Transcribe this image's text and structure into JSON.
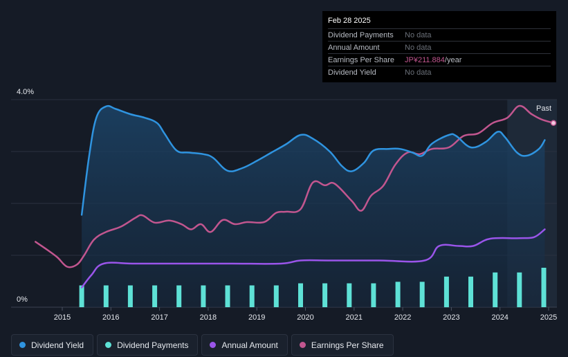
{
  "chart_data": {
    "type": "line",
    "y_axis": {
      "top_label": "4.0%",
      "bottom_label": "0%",
      "ylim": [
        0,
        4.0
      ]
    },
    "x_axis": {
      "ticks": [
        "2015",
        "2016",
        "2017",
        "2018",
        "2019",
        "2020",
        "2021",
        "2022",
        "2023",
        "2024",
        "2025"
      ],
      "xlim": [
        2014.4,
        2025.17
      ]
    },
    "past_label": "Past",
    "forecast_start": 2024.15,
    "series": [
      {
        "name": "Dividend Yield",
        "color": "#2f94e0",
        "unit": "%",
        "points": [
          [
            2015.4,
            1.78
          ],
          [
            2015.55,
            2.9
          ],
          [
            2015.7,
            3.65
          ],
          [
            2015.9,
            3.87
          ],
          [
            2016.1,
            3.82
          ],
          [
            2016.4,
            3.72
          ],
          [
            2016.7,
            3.65
          ],
          [
            2016.95,
            3.55
          ],
          [
            2017.1,
            3.35
          ],
          [
            2017.35,
            3.02
          ],
          [
            2017.6,
            2.98
          ],
          [
            2017.9,
            2.95
          ],
          [
            2018.1,
            2.88
          ],
          [
            2018.4,
            2.63
          ],
          [
            2018.7,
            2.68
          ],
          [
            2019.0,
            2.82
          ],
          [
            2019.3,
            2.98
          ],
          [
            2019.6,
            3.14
          ],
          [
            2019.9,
            3.32
          ],
          [
            2020.15,
            3.25
          ],
          [
            2020.5,
            3.0
          ],
          [
            2020.75,
            2.72
          ],
          [
            2020.95,
            2.62
          ],
          [
            2021.2,
            2.78
          ],
          [
            2021.4,
            3.02
          ],
          [
            2021.7,
            3.05
          ],
          [
            2021.95,
            3.05
          ],
          [
            2022.2,
            2.98
          ],
          [
            2022.4,
            2.92
          ],
          [
            2022.6,
            3.15
          ],
          [
            2022.95,
            3.32
          ],
          [
            2023.1,
            3.3
          ],
          [
            2023.4,
            3.08
          ],
          [
            2023.7,
            3.18
          ],
          [
            2023.95,
            3.38
          ],
          [
            2024.1,
            3.28
          ],
          [
            2024.35,
            2.98
          ],
          [
            2024.55,
            2.92
          ],
          [
            2024.8,
            3.05
          ],
          [
            2024.92,
            3.22
          ]
        ]
      },
      {
        "name": "Dividend Payments",
        "color": "#5ee1d6",
        "type": "bar",
        "x": [
          2015.4,
          2015.9,
          2016.4,
          2016.9,
          2017.4,
          2017.9,
          2018.4,
          2018.9,
          2019.4,
          2019.9,
          2020.4,
          2020.9,
          2021.4,
          2021.9,
          2022.4,
          2022.9,
          2023.4,
          2023.9,
          2024.4,
          2024.9
        ],
        "values": [
          0.42,
          0.42,
          0.42,
          0.42,
          0.42,
          0.42,
          0.42,
          0.42,
          0.42,
          0.46,
          0.46,
          0.46,
          0.46,
          0.49,
          0.49,
          0.59,
          0.59,
          0.67,
          0.67,
          0.76
        ]
      },
      {
        "name": "Annual Amount",
        "color": "#9a55ea",
        "points": [
          [
            2015.4,
            0.38
          ],
          [
            2015.6,
            0.62
          ],
          [
            2015.85,
            0.84
          ],
          [
            2016.5,
            0.84
          ],
          [
            2017.5,
            0.84
          ],
          [
            2018.5,
            0.84
          ],
          [
            2019.5,
            0.84
          ],
          [
            2019.9,
            0.9
          ],
          [
            2020.5,
            0.9
          ],
          [
            2021.5,
            0.9
          ],
          [
            2022.45,
            0.9
          ],
          [
            2022.75,
            1.18
          ],
          [
            2023.15,
            1.18
          ],
          [
            2023.45,
            1.18
          ],
          [
            2023.8,
            1.32
          ],
          [
            2024.4,
            1.33
          ],
          [
            2024.7,
            1.35
          ],
          [
            2024.92,
            1.5
          ]
        ]
      },
      {
        "name": "Earnings Per Share",
        "color": "#c2568f",
        "points": [
          [
            2014.45,
            1.26
          ],
          [
            2014.7,
            1.1
          ],
          [
            2014.9,
            0.96
          ],
          [
            2015.1,
            0.78
          ],
          [
            2015.3,
            0.82
          ],
          [
            2015.45,
            1.0
          ],
          [
            2015.65,
            1.3
          ],
          [
            2015.9,
            1.45
          ],
          [
            2016.2,
            1.55
          ],
          [
            2016.5,
            1.72
          ],
          [
            2016.65,
            1.77
          ],
          [
            2016.9,
            1.63
          ],
          [
            2017.2,
            1.67
          ],
          [
            2017.45,
            1.6
          ],
          [
            2017.65,
            1.5
          ],
          [
            2017.85,
            1.6
          ],
          [
            2018.05,
            1.45
          ],
          [
            2018.3,
            1.68
          ],
          [
            2018.55,
            1.6
          ],
          [
            2018.8,
            1.64
          ],
          [
            2019.15,
            1.64
          ],
          [
            2019.4,
            1.82
          ],
          [
            2019.6,
            1.84
          ],
          [
            2019.9,
            1.89
          ],
          [
            2020.15,
            2.4
          ],
          [
            2020.4,
            2.35
          ],
          [
            2020.6,
            2.38
          ],
          [
            2020.95,
            2.05
          ],
          [
            2021.15,
            1.86
          ],
          [
            2021.35,
            2.15
          ],
          [
            2021.6,
            2.34
          ],
          [
            2021.85,
            2.75
          ],
          [
            2022.1,
            2.98
          ],
          [
            2022.35,
            2.95
          ],
          [
            2022.6,
            3.05
          ],
          [
            2022.95,
            3.08
          ],
          [
            2023.25,
            3.3
          ],
          [
            2023.55,
            3.35
          ],
          [
            2023.85,
            3.55
          ],
          [
            2024.15,
            3.65
          ],
          [
            2024.4,
            3.88
          ],
          [
            2024.65,
            3.72
          ],
          [
            2024.85,
            3.62
          ],
          [
            2025.1,
            3.55
          ]
        ]
      }
    ]
  },
  "tooltip": {
    "date": "Feb 28 2025",
    "rows": [
      {
        "label": "Dividend Payments",
        "value": "No data",
        "unit": ""
      },
      {
        "label": "Annual Amount",
        "value": "No data",
        "unit": ""
      },
      {
        "label": "Earnings Per Share",
        "value": "JP¥211.884",
        "unit": "/year"
      },
      {
        "label": "Dividend Yield",
        "value": "No data",
        "unit": ""
      }
    ]
  },
  "legend": [
    {
      "label": "Dividend Yield",
      "color": "#2f94e0"
    },
    {
      "label": "Dividend Payments",
      "color": "#5ee1d6"
    },
    {
      "label": "Annual Amount",
      "color": "#9a55ea"
    },
    {
      "label": "Earnings Per Share",
      "color": "#c2568f"
    }
  ],
  "colors": {
    "background": "#151b26",
    "grid": "#2a3140",
    "forecast_band": "#1f2b3c",
    "area_fill": "#1b3b5a"
  }
}
